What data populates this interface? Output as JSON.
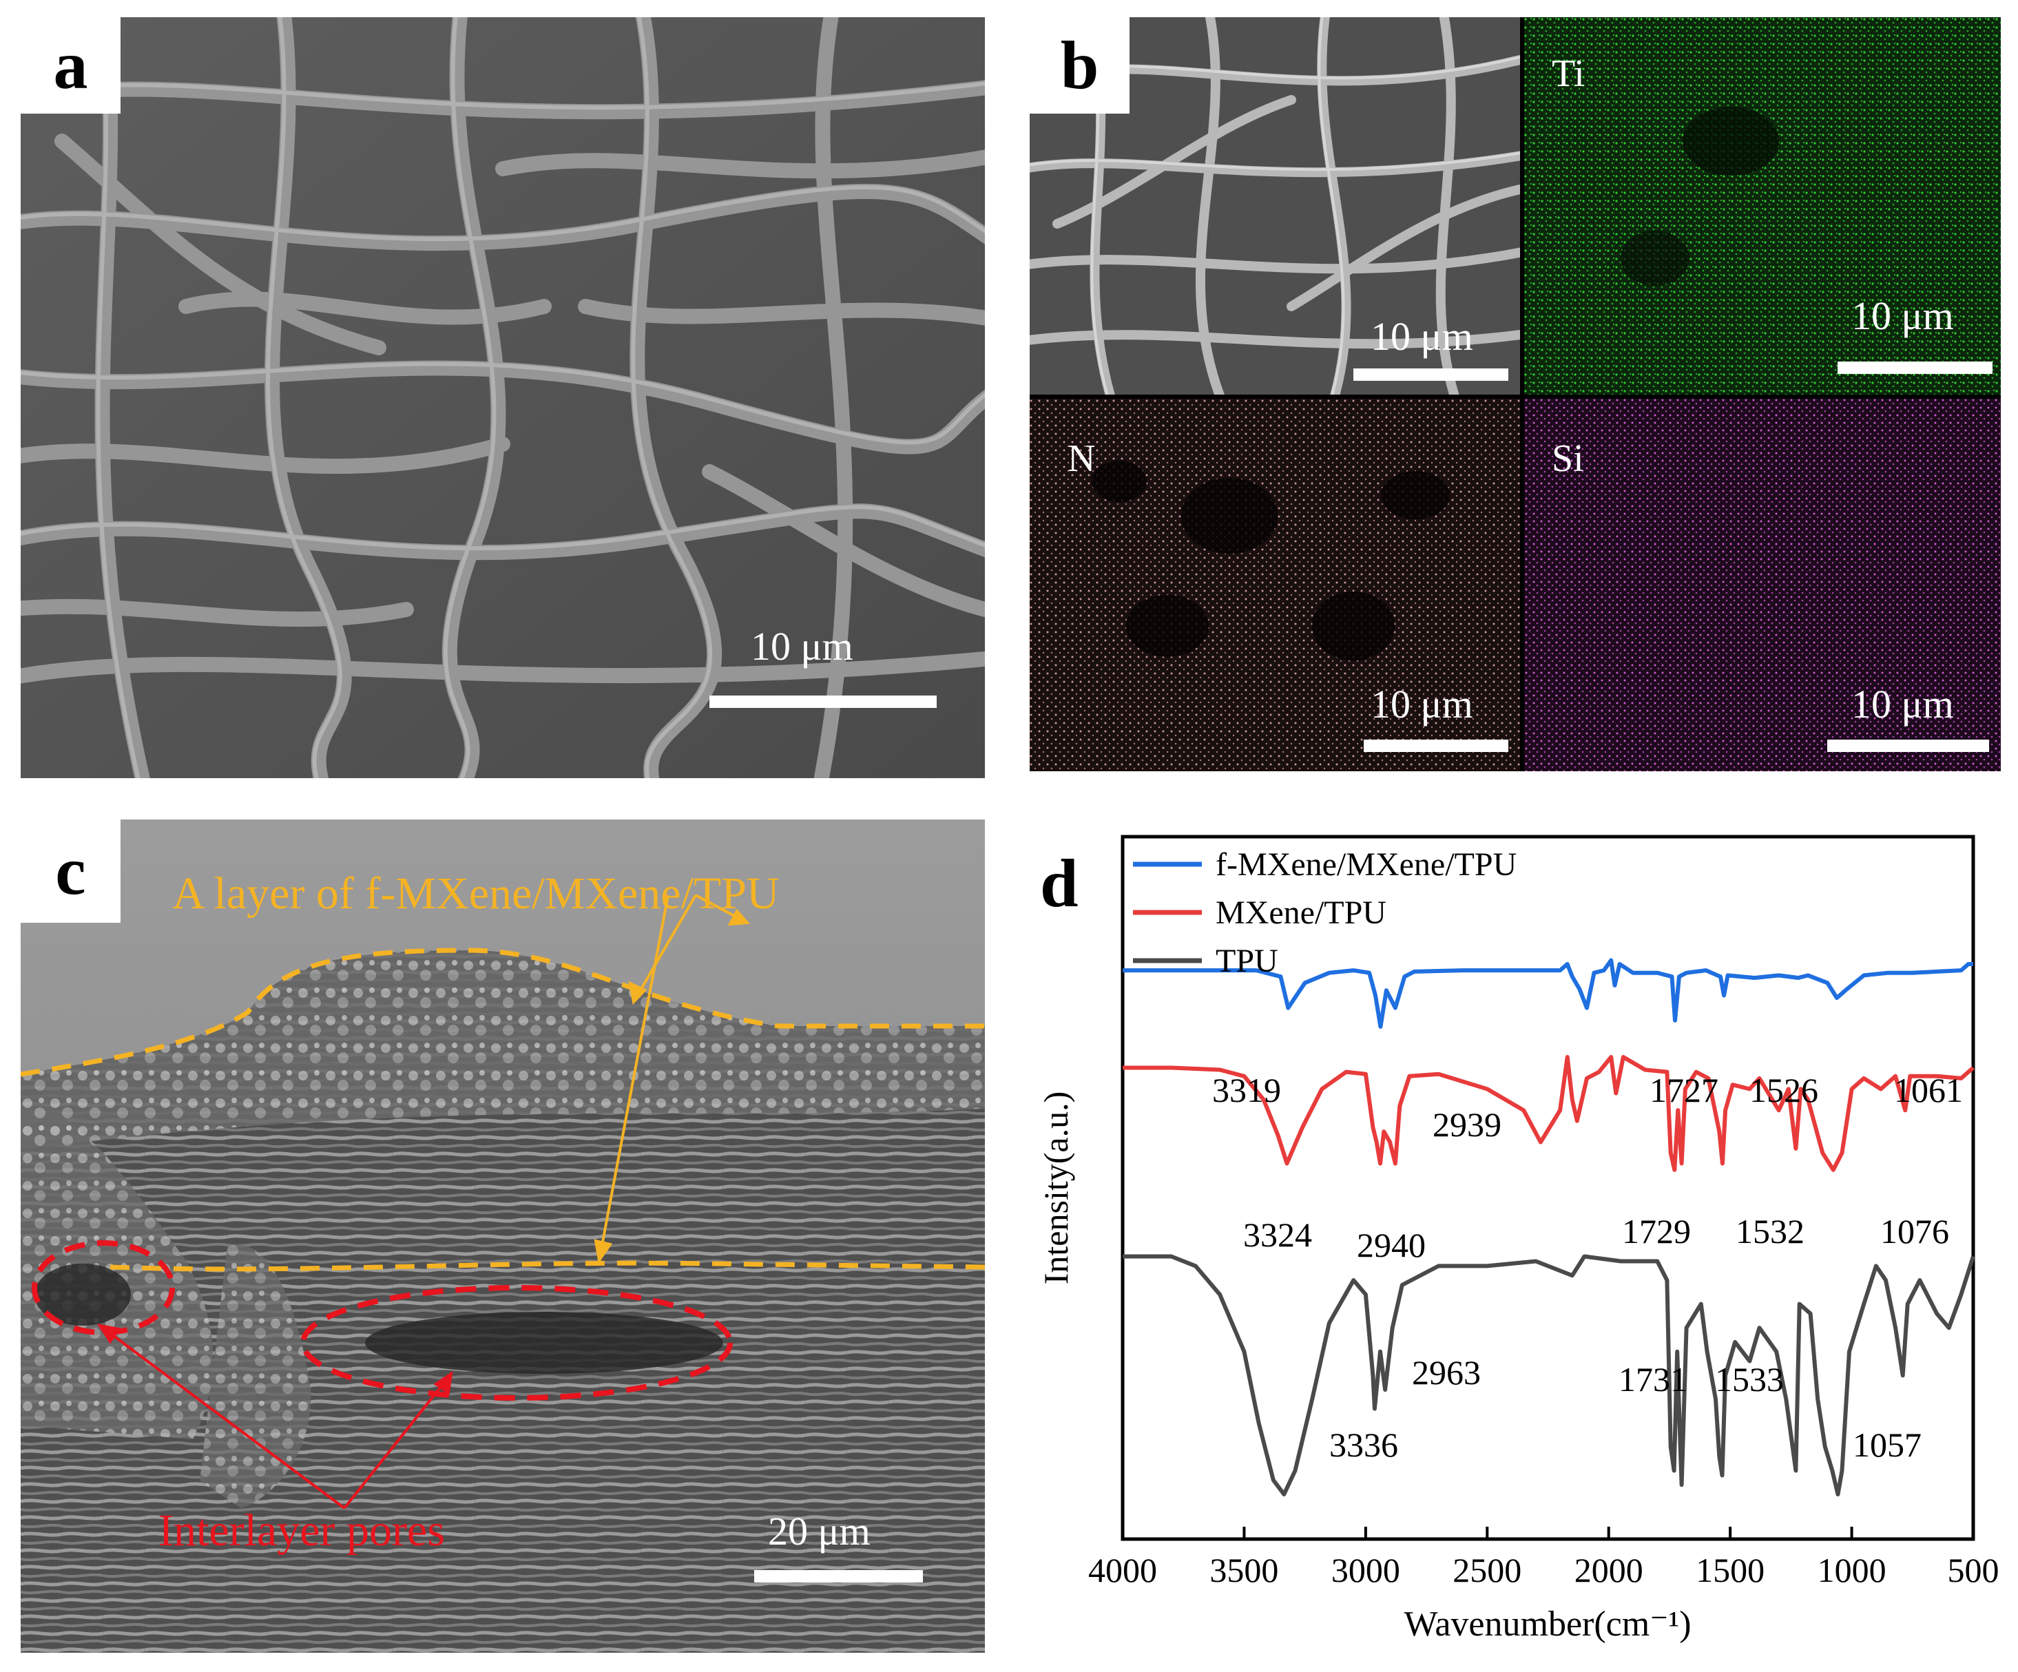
{
  "figure": {
    "panels": {
      "a": {
        "label": "a",
        "scale_bar": "10 μm"
      },
      "b": {
        "label": "b",
        "tiles": [
          {
            "element": "",
            "scale_bar": "10 μm",
            "color": "#c8c8c8"
          },
          {
            "element": "Ti",
            "scale_bar": "10 μm",
            "color": "#22c422"
          },
          {
            "element": "N",
            "scale_bar": "10 μm",
            "color": "#c89a95"
          },
          {
            "element": "Si",
            "scale_bar": "10 μm",
            "color": "#d05ad0"
          }
        ]
      },
      "c": {
        "label": "c",
        "annotation_layer": "A layer of f-MXene/MXene/TPU",
        "annotation_pores": "Interlayer pores",
        "scale_bar": "20 μm",
        "layer_color": "#f5b324",
        "pore_color": "#e8141e"
      },
      "d": {
        "label": "d"
      }
    }
  },
  "chart_data": {
    "type": "line",
    "xlabel": "Wavenumber(cm⁻¹)",
    "ylabel": "Intensity(a.u.)",
    "xlim": [
      4000,
      500
    ],
    "x_ticks": [
      "4000",
      "3500",
      "3000",
      "2500",
      "2000",
      "1500",
      "1000",
      "500"
    ],
    "legend_position": "top-left",
    "series": [
      {
        "name": "f-MXene/MXene/TPU",
        "color": "#1f6fe0",
        "peaks": [
          "3319",
          "2939",
          "1727",
          "1526",
          "1061"
        ],
        "points": [
          [
            4000,
            0.5
          ],
          [
            3800,
            0.5
          ],
          [
            3600,
            0.5
          ],
          [
            3450,
            0.5
          ],
          [
            3350,
            0.45
          ],
          [
            3319,
            0.2
          ],
          [
            3250,
            0.4
          ],
          [
            3150,
            0.48
          ],
          [
            3050,
            0.5
          ],
          [
            2985,
            0.48
          ],
          [
            2960,
            0.3
          ],
          [
            2939,
            0.05
          ],
          [
            2915,
            0.34
          ],
          [
            2878,
            0.2
          ],
          [
            2840,
            0.45
          ],
          [
            2800,
            0.49
          ],
          [
            2600,
            0.5
          ],
          [
            2400,
            0.5
          ],
          [
            2200,
            0.5
          ],
          [
            2170,
            0.55
          ],
          [
            2150,
            0.45
          ],
          [
            2120,
            0.35
          ],
          [
            2090,
            0.2
          ],
          [
            2060,
            0.48
          ],
          [
            2020,
            0.5
          ],
          [
            1990,
            0.58
          ],
          [
            1975,
            0.38
          ],
          [
            1955,
            0.55
          ],
          [
            1900,
            0.48
          ],
          [
            1800,
            0.48
          ],
          [
            1740,
            0.45
          ],
          [
            1727,
            0.1
          ],
          [
            1710,
            0.45
          ],
          [
            1680,
            0.48
          ],
          [
            1600,
            0.5
          ],
          [
            1540,
            0.45
          ],
          [
            1526,
            0.3
          ],
          [
            1510,
            0.46
          ],
          [
            1400,
            0.44
          ],
          [
            1300,
            0.46
          ],
          [
            1220,
            0.44
          ],
          [
            1180,
            0.46
          ],
          [
            1100,
            0.4
          ],
          [
            1061,
            0.28
          ],
          [
            1020,
            0.35
          ],
          [
            950,
            0.46
          ],
          [
            850,
            0.48
          ],
          [
            750,
            0.48
          ],
          [
            650,
            0.49
          ],
          [
            550,
            0.5
          ],
          [
            520,
            0.55
          ],
          [
            500,
            0.55
          ]
        ]
      },
      {
        "name": "MXene/TPU",
        "color": "#e83b3b",
        "peaks": [
          "3324",
          "2940",
          "1729",
          "1532",
          "1076"
        ],
        "points": [
          [
            4000,
            0.5
          ],
          [
            3800,
            0.5
          ],
          [
            3600,
            0.49
          ],
          [
            3500,
            0.46
          ],
          [
            3420,
            0.35
          ],
          [
            3360,
            0.18
          ],
          [
            3324,
            0.05
          ],
          [
            3260,
            0.22
          ],
          [
            3180,
            0.4
          ],
          [
            3080,
            0.48
          ],
          [
            3000,
            0.47
          ],
          [
            2970,
            0.22
          ],
          [
            2955,
            0.15
          ],
          [
            2940,
            0.05
          ],
          [
            2925,
            0.2
          ],
          [
            2900,
            0.15
          ],
          [
            2878,
            0.05
          ],
          [
            2860,
            0.32
          ],
          [
            2820,
            0.46
          ],
          [
            2700,
            0.47
          ],
          [
            2500,
            0.4
          ],
          [
            2350,
            0.3
          ],
          [
            2280,
            0.15
          ],
          [
            2200,
            0.3
          ],
          [
            2170,
            0.55
          ],
          [
            2150,
            0.35
          ],
          [
            2130,
            0.25
          ],
          [
            2090,
            0.45
          ],
          [
            2040,
            0.48
          ],
          [
            1990,
            0.55
          ],
          [
            1970,
            0.38
          ],
          [
            1940,
            0.55
          ],
          [
            1850,
            0.49
          ],
          [
            1760,
            0.48
          ],
          [
            1745,
            0.1
          ],
          [
            1729,
            0.02
          ],
          [
            1715,
            0.3
          ],
          [
            1700,
            0.05
          ],
          [
            1685,
            0.4
          ],
          [
            1640,
            0.48
          ],
          [
            1590,
            0.45
          ],
          [
            1545,
            0.2
          ],
          [
            1532,
            0.05
          ],
          [
            1520,
            0.3
          ],
          [
            1490,
            0.42
          ],
          [
            1420,
            0.4
          ],
          [
            1380,
            0.45
          ],
          [
            1300,
            0.3
          ],
          [
            1260,
            0.4
          ],
          [
            1230,
            0.12
          ],
          [
            1210,
            0.4
          ],
          [
            1180,
            0.35
          ],
          [
            1120,
            0.1
          ],
          [
            1076,
            0.02
          ],
          [
            1040,
            0.1
          ],
          [
            1000,
            0.4
          ],
          [
            950,
            0.45
          ],
          [
            880,
            0.4
          ],
          [
            820,
            0.46
          ],
          [
            780,
            0.3
          ],
          [
            760,
            0.46
          ],
          [
            650,
            0.46
          ],
          [
            550,
            0.45
          ],
          [
            500,
            0.5
          ]
        ]
      },
      {
        "name": "TPU",
        "color": "#4a4a4a",
        "peaks": [
          "3336",
          "2963",
          "1731",
          "1533",
          "1057"
        ],
        "points": [
          [
            4000,
            0.5
          ],
          [
            3800,
            0.5
          ],
          [
            3700,
            0.48
          ],
          [
            3600,
            0.42
          ],
          [
            3500,
            0.3
          ],
          [
            3440,
            0.15
          ],
          [
            3380,
            0.03
          ],
          [
            3336,
            0.0
          ],
          [
            3290,
            0.05
          ],
          [
            3220,
            0.2
          ],
          [
            3150,
            0.36
          ],
          [
            3050,
            0.45
          ],
          [
            3000,
            0.42
          ],
          [
            2970,
            0.25
          ],
          [
            2963,
            0.18
          ],
          [
            2940,
            0.3
          ],
          [
            2920,
            0.22
          ],
          [
            2890,
            0.35
          ],
          [
            2850,
            0.44
          ],
          [
            2700,
            0.48
          ],
          [
            2500,
            0.48
          ],
          [
            2300,
            0.49
          ],
          [
            2150,
            0.46
          ],
          [
            2100,
            0.5
          ],
          [
            1950,
            0.49
          ],
          [
            1800,
            0.49
          ],
          [
            1760,
            0.45
          ],
          [
            1745,
            0.1
          ],
          [
            1731,
            0.05
          ],
          [
            1718,
            0.3
          ],
          [
            1700,
            0.02
          ],
          [
            1680,
            0.35
          ],
          [
            1620,
            0.4
          ],
          [
            1595,
            0.3
          ],
          [
            1560,
            0.2
          ],
          [
            1545,
            0.08
          ],
          [
            1533,
            0.04
          ],
          [
            1520,
            0.25
          ],
          [
            1480,
            0.32
          ],
          [
            1420,
            0.28
          ],
          [
            1380,
            0.35
          ],
          [
            1310,
            0.3
          ],
          [
            1270,
            0.2
          ],
          [
            1230,
            0.05
          ],
          [
            1215,
            0.4
          ],
          [
            1170,
            0.38
          ],
          [
            1140,
            0.2
          ],
          [
            1110,
            0.1
          ],
          [
            1080,
            0.05
          ],
          [
            1057,
            0.0
          ],
          [
            1040,
            0.05
          ],
          [
            1010,
            0.3
          ],
          [
            950,
            0.4
          ],
          [
            900,
            0.48
          ],
          [
            860,
            0.45
          ],
          [
            820,
            0.35
          ],
          [
            790,
            0.25
          ],
          [
            770,
            0.4
          ],
          [
            720,
            0.45
          ],
          [
            650,
            0.38
          ],
          [
            600,
            0.35
          ],
          [
            550,
            0.42
          ],
          [
            500,
            0.5
          ]
        ]
      }
    ]
  }
}
